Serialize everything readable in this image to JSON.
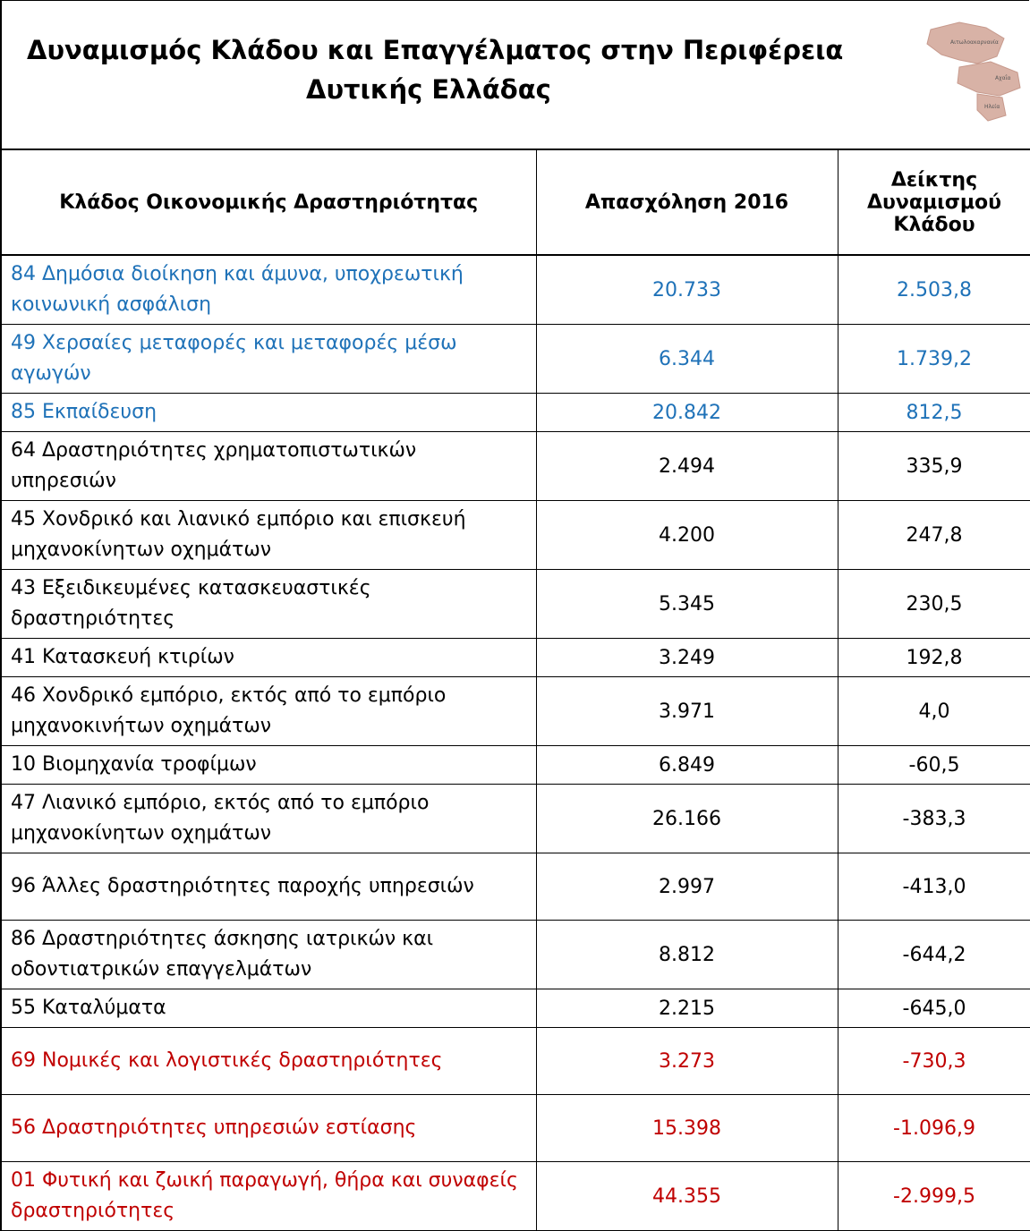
{
  "header": {
    "title_line1": "Δυναμισμός Κλάδου και Επαγγέλματος στην Περιφέρεια",
    "title_line2": "Δυτικής Ελλάδας",
    "map_labels": [
      "Αιτωλοακαρνανία",
      "Αχαΐα",
      "Ηλεία"
    ]
  },
  "table": {
    "columns": [
      "Κλάδος Οικονομικής Δραστηριότητας",
      "Απασχόληση 2016",
      "Δείκτης Δυναμισμού Κλάδου"
    ],
    "rows": [
      {
        "cells": [
          "84 Δημόσια διοίκηση και άμυνα, υποχρεωτική κοινωνική ασφάλιση",
          "20.733",
          "2.503,8"
        ],
        "color": "#1f72b8"
      },
      {
        "cells": [
          "49 Χερσαίες μεταφορές και μεταφορές μέσω αγωγών",
          "6.344",
          "1.739,2"
        ],
        "color": "#1f72b8"
      },
      {
        "cells": [
          "85 Εκπαίδευση",
          "20.842",
          "812,5"
        ],
        "color": "#1f72b8"
      },
      {
        "cells": [
          "64 Δραστηριότητες χρηματοπιστωτικών υπηρεσιών",
          "2.494",
          "335,9"
        ],
        "color": "#000000"
      },
      {
        "cells": [
          "45 Χονδρικό και λιανικό εμπόριο και επισκευή μηχανοκίνητων οχημάτων",
          "4.200",
          "247,8"
        ],
        "color": "#000000"
      },
      {
        "cells": [
          "43 Εξειδικευμένες κατασκευαστικές δραστηριότητες",
          "5.345",
          "230,5"
        ],
        "color": "#000000"
      },
      {
        "cells": [
          "41 Κατασκευή κτιρίων",
          "3.249",
          "192,8"
        ],
        "color": "#000000"
      },
      {
        "cells": [
          "46 Χονδρικό εμπόριο, εκτός από το εμπόριο μηχανοκινήτων οχημάτων",
          "3.971",
          "4,0"
        ],
        "color": "#000000"
      },
      {
        "cells": [
          "10 Βιομηχανία τροφίμων",
          "6.849",
          "-60,5"
        ],
        "color": "#000000"
      },
      {
        "cells": [
          "47 Λιανικό εμπόριο, εκτός από το εμπόριο μηχανοκίνητων οχημάτων",
          "26.166",
          "-383,3"
        ],
        "color": "#000000"
      },
      {
        "cells": [
          "96 Άλλες δραστηριότητες παροχής υπηρεσιών",
          "2.997",
          "-413,0"
        ],
        "color": "#000000"
      },
      {
        "cells": [
          "86 Δραστηριότητες άσκησης ιατρικών και οδοντιατρικών επαγγελμάτων",
          "8.812",
          "-644,2"
        ],
        "color": "#000000"
      },
      {
        "cells": [
          "55 Καταλύματα",
          "2.215",
          "-645,0"
        ],
        "color": "#000000"
      },
      {
        "cells": [
          "69 Νομικές και λογιστικές δραστηριότητες",
          "3.273",
          "-730,3"
        ],
        "color": "#c00000"
      },
      {
        "cells": [
          "56 Δραστηριότητες υπηρεσιών εστίασης",
          "15.398",
          "-1.096,9"
        ],
        "color": "#c00000"
      },
      {
        "cells": [
          "01 Φυτική και ζωική παραγωγή, θήρα και συναφείς δραστηριότητες",
          "44.355",
          "-2.999,5"
        ],
        "color": "#c00000"
      }
    ]
  }
}
